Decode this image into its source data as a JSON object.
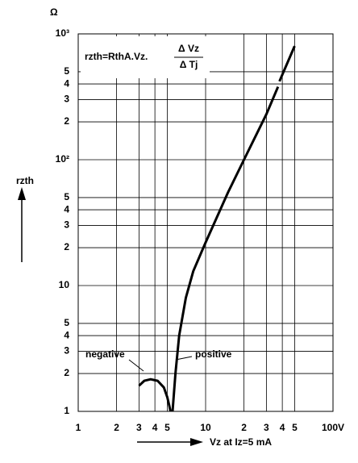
{
  "chart_data": {
    "type": "line",
    "log_scale": true,
    "grid": true,
    "y_unit": "Ω",
    "y_label": "rzth",
    "x_label": "Vz at Iz=5 mA",
    "formula": {
      "left": "rzth=RthA.Vz.",
      "numerator": "Δ Vz",
      "denominator": "Δ Tj"
    },
    "xlim": [
      1,
      100
    ],
    "ylim": [
      1,
      1000
    ],
    "xticks": [
      1,
      {
        "value": 2,
        "label": "2"
      },
      {
        "value": 3,
        "label": "3"
      },
      {
        "value": 4,
        "label": "4"
      },
      {
        "value": 5,
        "label": "5"
      },
      10,
      {
        "value": 20,
        "label": "2"
      },
      {
        "value": 30,
        "label": "3"
      },
      {
        "value": 40,
        "label": "4"
      },
      {
        "value": 50,
        "label": "5"
      },
      {
        "value": 100,
        "label": "100V"
      }
    ],
    "yticks": [
      1,
      2,
      3,
      4,
      5,
      10,
      {
        "value": 20,
        "label": "2"
      },
      {
        "value": 30,
        "label": "3"
      },
      {
        "value": 40,
        "label": "4"
      },
      {
        "value": 50,
        "label": "5"
      },
      {
        "value": 100,
        "label": "10²"
      },
      {
        "value": 200,
        "label": "2"
      },
      {
        "value": 300,
        "label": "3"
      },
      {
        "value": 400,
        "label": "4"
      },
      {
        "value": 500,
        "label": "5"
      },
      {
        "value": 1000,
        "label": "10³"
      }
    ],
    "series": [
      {
        "name": "negative",
        "color": "#000",
        "x": [
          3,
          3.3,
          3.7,
          4.2,
          4.7,
          5.0,
          5.2,
          5.3
        ],
        "values": [
          1.6,
          1.75,
          1.8,
          1.75,
          1.55,
          1.3,
          1.1,
          1.0
        ]
      },
      {
        "name": "positive",
        "color": "#000",
        "x": [
          5.5,
          5.8,
          6.2,
          7,
          8,
          10,
          15,
          20,
          30,
          37,
          null,
          38,
          50
        ],
        "values": [
          1,
          2,
          4,
          8,
          13,
          22,
          55,
          100,
          230,
          380,
          null,
          420,
          800
        ]
      }
    ]
  }
}
